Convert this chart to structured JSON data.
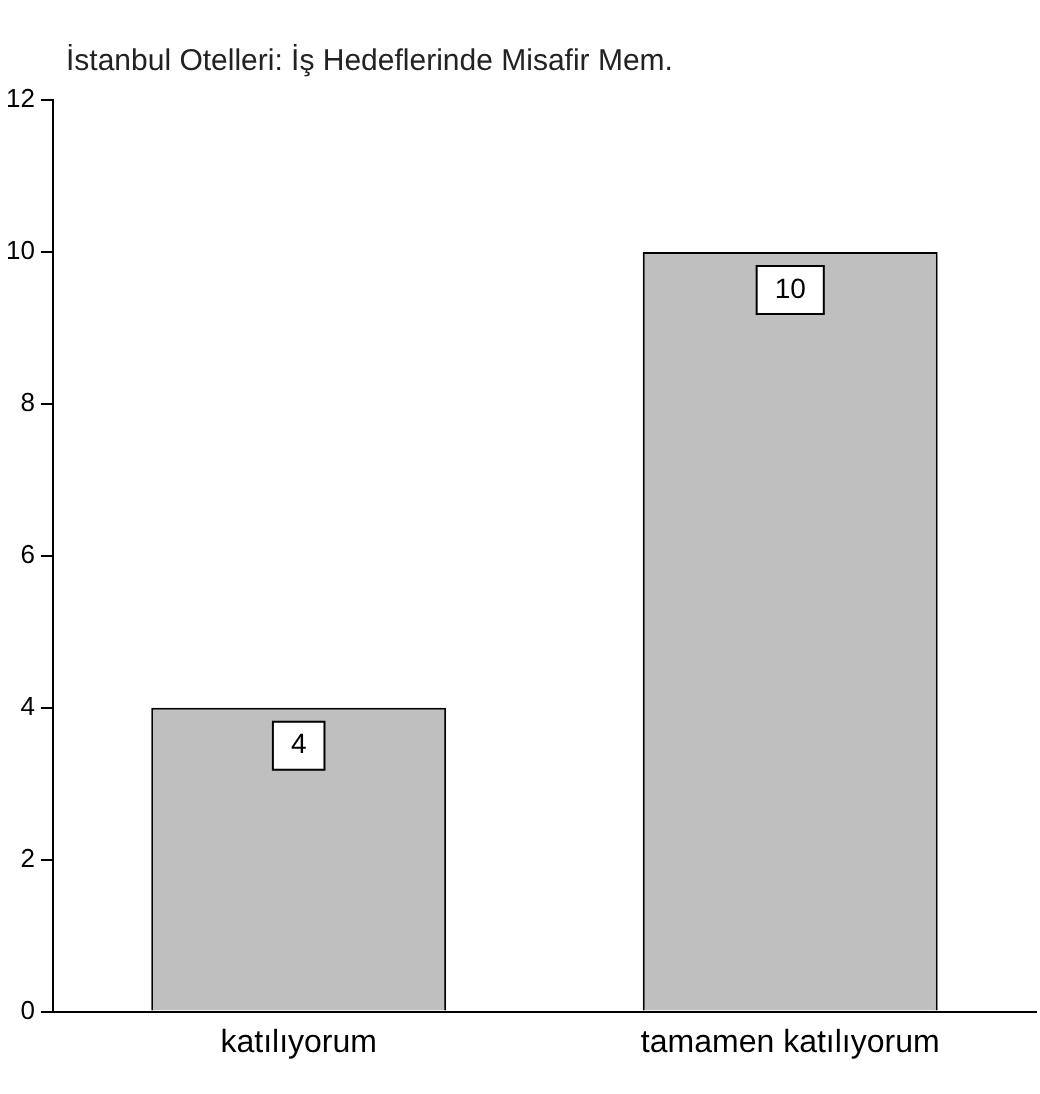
{
  "chart_data": {
    "type": "bar",
    "title": "İstanbul Otelleri: İş Hedeflerinde Misafir Mem.",
    "categories": [
      "katılıyorum",
      "tamamen katılıyorum"
    ],
    "values": [
      4,
      10
    ],
    "color": "#bfbfbf",
    "ylim": [
      0,
      12
    ],
    "yticks": [
      0,
      2,
      4,
      6,
      8,
      10,
      12
    ],
    "grid": false,
    "legend": false,
    "data_labels": true
  }
}
